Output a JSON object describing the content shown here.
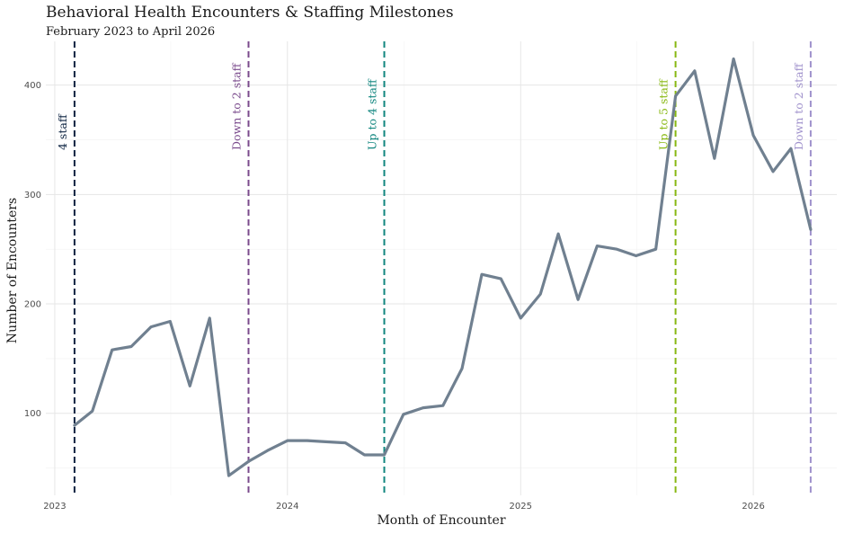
{
  "chart_data": {
    "type": "line",
    "title": "Behavioral Health Encounters & Staffing Milestones",
    "subtitle": "February 2023 to April 2026",
    "xlabel": "Month of Encounter",
    "ylabel": "Number of Encounters",
    "x_ticks": [
      "2023",
      "2024",
      "2025",
      "2026"
    ],
    "y_ticks": [
      100,
      200,
      300,
      400
    ],
    "ylim": [
      25,
      440
    ],
    "xlim": [
      "2022-12-18",
      "2026-05-12"
    ],
    "grid": true,
    "series": [
      {
        "color": "#708090",
        "x": [
          "2023-02",
          "2023-03",
          "2023-04",
          "2023-05",
          "2023-06",
          "2023-07",
          "2023-08",
          "2023-09",
          "2023-10",
          "2023-11",
          "2023-12",
          "2024-01",
          "2024-02",
          "2024-03",
          "2024-04",
          "2024-05",
          "2024-06",
          "2024-07",
          "2024-08",
          "2024-09",
          "2024-10",
          "2024-11",
          "2024-12",
          "2025-01",
          "2025-02",
          "2025-03",
          "2025-04",
          "2025-05",
          "2025-06",
          "2025-07",
          "2025-08",
          "2025-09",
          "2025-10",
          "2025-11",
          "2025-12",
          "2026-01",
          "2026-02",
          "2026-03",
          "2026-04"
        ],
        "values": [
          89,
          102,
          158,
          161,
          179,
          184,
          125,
          187,
          43,
          56,
          66,
          75,
          75,
          74,
          73,
          62,
          62,
          99,
          105,
          107,
          141,
          227,
          223,
          187,
          209,
          264,
          204,
          253,
          250,
          244,
          250,
          390,
          413,
          333,
          424,
          354,
          321,
          342,
          268
        ]
      }
    ],
    "milestones": [
      {
        "date": "2023-02-01",
        "label": "4 staff",
        "color": "#0b2240"
      },
      {
        "date": "2023-11-01",
        "label": "Down to 2 staff",
        "color": "#7a4a8c"
      },
      {
        "date": "2024-06-01",
        "label": "Up to 4 staff",
        "color": "#11867f"
      },
      {
        "date": "2025-09-01",
        "label": "Up to 5 staff",
        "color": "#88b812"
      },
      {
        "date": "2026-04-01",
        "label": "Down to 2 staff",
        "color": "#a092cc"
      }
    ]
  }
}
